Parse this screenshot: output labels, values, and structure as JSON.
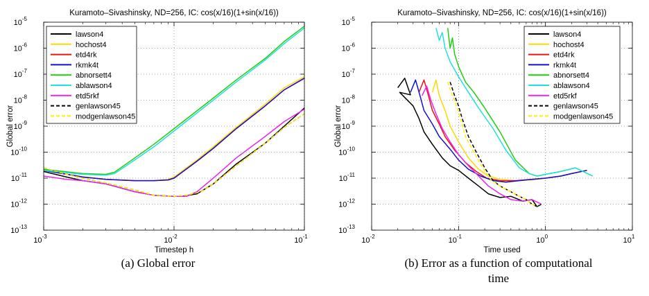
{
  "captions": [
    {
      "lines": [
        "(a) Global error"
      ]
    },
    {
      "lines": [
        "(b) Error as a function of computational",
        "time"
      ]
    }
  ],
  "colors": {
    "lawson4": "#000000",
    "hochost4": "#ffd700",
    "etd4rk": "#ee1111",
    "rkmk4t": "#1111cc",
    "abnorsett4": "#22cc11",
    "ablawson4": "#22e0e0",
    "etd5rkf": "#ee22ee",
    "genlawson45": "#000000",
    "modgenlawson45": "#ffee00"
  },
  "chart_data": [
    {
      "type": "line",
      "title": "Kuramoto–Sivashinsky, ND=256, IC: cos(x/16)(1+sin(x/16))",
      "xlabel": "Timestep h",
      "ylabel": "Global error",
      "xscale": "log",
      "yscale": "log",
      "xlim": [
        0.001,
        0.1
      ],
      "ylim": [
        1e-13,
        1e-05
      ],
      "xticks": [
        {
          "base": "10",
          "exp": "-3"
        },
        {
          "base": "10",
          "exp": "-2"
        },
        {
          "base": "10",
          "exp": "-1"
        }
      ],
      "yticks": [
        {
          "base": "10",
          "exp": "-13"
        },
        {
          "base": "10",
          "exp": "-12"
        },
        {
          "base": "10",
          "exp": "-11"
        },
        {
          "base": "10",
          "exp": "-10"
        },
        {
          "base": "10",
          "exp": "-9"
        },
        {
          "base": "10",
          "exp": "-8"
        },
        {
          "base": "10",
          "exp": "-7"
        },
        {
          "base": "10",
          "exp": "-6"
        },
        {
          "base": "10",
          "exp": "-5"
        }
      ],
      "grid": true,
      "legend_position": "top-left",
      "series": [
        {
          "name": "lawson4",
          "color": "#000000",
          "dash": "",
          "x": [
            0.001,
            0.0015,
            0.002,
            0.003,
            0.005,
            0.007,
            0.01,
            0.0115,
            0.015,
            0.02,
            0.03,
            0.05,
            0.07,
            0.1
          ],
          "y": [
            1.8e-11,
            1.1e-11,
            8e-12,
            6e-12,
            3e-12,
            2.2e-12,
            2e-12,
            2e-12,
            2.5e-12,
            6e-12,
            3.5e-11,
            2.2e-10,
            1e-09,
            5e-09
          ]
        },
        {
          "name": "hochost4",
          "color": "#ffd700",
          "dash": "",
          "x": [
            0.001,
            0.002,
            0.003,
            0.005,
            0.007,
            0.009,
            0.01,
            0.015,
            0.02,
            0.03,
            0.05,
            0.07,
            0.1
          ],
          "y": [
            2e-11,
            1.1e-11,
            9e-12,
            8e-12,
            8e-12,
            9e-12,
            1.1e-11,
            5e-11,
            1.6e-10,
            9e-10,
            7e-09,
            3e-08,
            8e-08
          ]
        },
        {
          "name": "etd4rk",
          "color": "#ee1111",
          "dash": "",
          "x": [
            0.001,
            0.002,
            0.003,
            0.005,
            0.007,
            0.009,
            0.01,
            0.015,
            0.02,
            0.03,
            0.05,
            0.07,
            0.1
          ],
          "y": [
            2e-11,
            1.1e-11,
            9e-12,
            8e-12,
            8e-12,
            8.5e-12,
            1e-11,
            4.5e-11,
            1.4e-10,
            8e-10,
            6e-09,
            2.5e-08,
            7e-08
          ]
        },
        {
          "name": "rkmk4t",
          "color": "#1111cc",
          "dash": "",
          "x": [
            0.001,
            0.002,
            0.003,
            0.005,
            0.007,
            0.009,
            0.01,
            0.015,
            0.02,
            0.03,
            0.05,
            0.07,
            0.1
          ],
          "y": [
            2e-11,
            1.1e-11,
            9e-12,
            8e-12,
            8e-12,
            8.5e-12,
            1e-11,
            4.5e-11,
            1.4e-10,
            8e-10,
            6e-09,
            2.5e-08,
            7e-08
          ]
        },
        {
          "name": "abnorsett4",
          "color": "#22cc11",
          "dash": "",
          "x": [
            0.001,
            0.002,
            0.003,
            0.0035,
            0.005,
            0.007,
            0.01,
            0.02,
            0.03,
            0.05,
            0.07,
            0.1
          ],
          "y": [
            2.2e-11,
            1.5e-11,
            1.4e-11,
            1.7e-11,
            6e-11,
            2e-10,
            8e-10,
            1.2e-08,
            6e-08,
            4e-07,
            1.8e-06,
            7e-06
          ]
        },
        {
          "name": "ablawson4",
          "color": "#22e0e0",
          "dash": "",
          "x": [
            0.001,
            0.002,
            0.003,
            0.0035,
            0.005,
            0.007,
            0.01,
            0.02,
            0.03,
            0.05,
            0.07,
            0.1
          ],
          "y": [
            2e-11,
            1.4e-11,
            1.3e-11,
            1.5e-11,
            5e-11,
            1.6e-10,
            6.5e-10,
            1e-08,
            5e-08,
            3.5e-07,
            1.5e-06,
            6e-06
          ]
        },
        {
          "name": "etd5rkf",
          "color": "#ee22ee",
          "dash": "",
          "x": [
            0.001,
            0.0015,
            0.002,
            0.003,
            0.005,
            0.007,
            0.01,
            0.0125,
            0.015,
            0.02,
            0.03,
            0.05,
            0.07,
            0.1
          ],
          "y": [
            1.2e-11,
            9e-12,
            8e-12,
            6e-12,
            3e-12,
            2.2e-12,
            2e-12,
            2e-12,
            3e-12,
            1e-11,
            6e-11,
            4e-10,
            1.5e-09,
            4.5e-09
          ]
        },
        {
          "name": "genlawson45",
          "color": "#000000",
          "dash": "5,3",
          "x": [
            0.001,
            0.0015,
            0.002,
            0.003,
            0.005,
            0.007,
            0.01,
            0.0125,
            0.016,
            0.02,
            0.03,
            0.05,
            0.07,
            0.1
          ],
          "y": [
            2.5e-11,
            1.4e-11,
            1e-11,
            6.5e-12,
            3.5e-12,
            2.2e-12,
            2e-12,
            2.2e-12,
            3e-12,
            6e-12,
            3e-11,
            2.2e-10,
            9e-10,
            3e-09
          ]
        },
        {
          "name": "modgenlawson45",
          "color": "#ffee00",
          "dash": "5,3",
          "x": [
            0.001,
            0.0015,
            0.002,
            0.003,
            0.005,
            0.007,
            0.01,
            0.0125,
            0.016,
            0.02,
            0.03,
            0.05,
            0.07,
            0.1
          ],
          "y": [
            2.5e-11,
            1.4e-11,
            1e-11,
            6.5e-12,
            3.5e-12,
            2.2e-12,
            2e-12,
            2.2e-12,
            3e-12,
            6e-12,
            3e-11,
            2.2e-10,
            9e-10,
            3e-09
          ]
        }
      ]
    },
    {
      "type": "line",
      "title": "Kuramoto–Sivashinsky, ND=256, IC: cos(x/16)(1+sin(x/16))",
      "xlabel": "Time used",
      "ylabel": "Global error",
      "xscale": "log",
      "yscale": "log",
      "xlim": [
        0.01,
        10
      ],
      "ylim": [
        1e-13,
        1e-05
      ],
      "xticks": [
        {
          "base": "10",
          "exp": "-2"
        },
        {
          "base": "10",
          "exp": "-1"
        },
        {
          "base": "10",
          "exp": "0"
        },
        {
          "base": "10",
          "exp": "1"
        }
      ],
      "yticks": [
        {
          "base": "10",
          "exp": "-13"
        },
        {
          "base": "10",
          "exp": "-12"
        },
        {
          "base": "10",
          "exp": "-11"
        },
        {
          "base": "10",
          "exp": "-10"
        },
        {
          "base": "10",
          "exp": "-9"
        },
        {
          "base": "10",
          "exp": "-8"
        },
        {
          "base": "10",
          "exp": "-7"
        },
        {
          "base": "10",
          "exp": "-6"
        },
        {
          "base": "10",
          "exp": "-5"
        }
      ],
      "grid": true,
      "legend_position": "top-right",
      "series": [
        {
          "name": "lawson4",
          "color": "#000000",
          "dash": "",
          "x": [
            0.02,
            0.024,
            0.028,
            0.021,
            0.03,
            0.035,
            0.04,
            0.05,
            0.065,
            0.08,
            0.1,
            0.13,
            0.17,
            0.22,
            0.3,
            0.4,
            0.55,
            0.7,
            0.8,
            0.9
          ],
          "y": [
            3e-08,
            7e-08,
            1.6e-08,
            2e-08,
            6e-09,
            2e-09,
            6e-10,
            2e-10,
            6e-11,
            3e-11,
            2e-11,
            1e-11,
            5e-12,
            2.5e-12,
            1.8e-12,
            2e-12,
            1.3e-12,
            1.5e-12,
            8e-13,
            1e-12
          ]
        },
        {
          "name": "hochost4",
          "color": "#ffd700",
          "dash": "",
          "x": [
            0.05,
            0.055,
            0.06,
            0.07,
            0.08,
            0.1,
            0.13,
            0.17,
            0.22,
            0.3,
            0.45,
            0.7,
            1,
            1.5,
            2,
            3
          ],
          "y": [
            2e-08,
            6e-08,
            1.5e-08,
            4e-09,
            1e-09,
            2.5e-10,
            6e-11,
            2.2e-11,
            1.2e-11,
            9e-12,
            8e-12,
            8.5e-12,
            1e-11,
            1.2e-11,
            1.5e-11,
            2e-11
          ]
        },
        {
          "name": "etd4rk",
          "color": "#ee1111",
          "dash": "",
          "x": [
            0.035,
            0.04,
            0.045,
            0.05,
            0.06,
            0.07,
            0.09,
            0.12,
            0.16,
            0.21,
            0.3,
            0.45,
            0.7,
            1,
            1.5,
            2,
            3
          ],
          "y": [
            2e-08,
            6e-08,
            1.5e-08,
            4e-09,
            1.2e-09,
            4e-10,
            1.2e-10,
            4e-11,
            1.8e-11,
            1e-11,
            8e-12,
            8e-12,
            9e-12,
            1e-11,
            1.2e-11,
            1.5e-11,
            2e-11
          ]
        },
        {
          "name": "rkmk4t",
          "color": "#1111cc",
          "dash": "",
          "x": [
            0.028,
            0.032,
            0.036,
            0.04,
            0.05,
            0.06,
            0.08,
            0.1,
            0.13,
            0.18,
            0.25,
            0.35,
            0.5,
            0.7,
            1,
            1.5,
            2,
            3
          ],
          "y": [
            2e-08,
            6e-08,
            1.5e-08,
            4e-09,
            1.2e-09,
            4e-10,
            1.3e-10,
            5e-11,
            2.2e-11,
            1.2e-11,
            8e-12,
            7e-12,
            8e-12,
            9e-12,
            1e-11,
            1.2e-11,
            1.5e-11,
            2e-11
          ]
        },
        {
          "name": "abnorsett4",
          "color": "#22cc11",
          "dash": "",
          "x": [
            0.075,
            0.08,
            0.085,
            0.09,
            0.1,
            0.12,
            0.15,
            0.2,
            0.3,
            0.45,
            0.65,
            0.8,
            1,
            1.5,
            2.2,
            3.5
          ],
          "y": [
            6e-06,
            1e-06,
            2.5e-06,
            6e-07,
            2e-07,
            5e-08,
            2e-08,
            5e-09,
            6e-10,
            5e-11,
            1.5e-11,
            1.2e-11,
            1.4e-11,
            1.8e-11,
            2.5e-11,
            1.2e-11
          ]
        },
        {
          "name": "ablawson4",
          "color": "#22e0e0",
          "dash": "",
          "x": [
            0.055,
            0.06,
            0.065,
            0.07,
            0.08,
            0.1,
            0.13,
            0.17,
            0.25,
            0.35,
            0.5,
            0.65,
            0.8,
            1,
            1.5,
            2.2,
            3.5
          ],
          "y": [
            6e-06,
            2e-06,
            4e-06,
            1e-06,
            3e-07,
            8e-08,
            2e-08,
            5e-09,
            8e-10,
            1.2e-10,
            2.5e-11,
            1.5e-11,
            1.2e-11,
            1.4e-11,
            1.8e-11,
            2.5e-11,
            1.2e-11
          ]
        },
        {
          "name": "etd5rkf",
          "color": "#ee22ee",
          "dash": "",
          "x": [
            0.038,
            0.043,
            0.048,
            0.055,
            0.065,
            0.08,
            0.1,
            0.13,
            0.17,
            0.22,
            0.3,
            0.4,
            0.55,
            0.7,
            0.9
          ],
          "y": [
            1.5e-08,
            3.5e-08,
            1e-08,
            3e-09,
            8e-10,
            2.5e-10,
            8e-11,
            3e-11,
            1.2e-11,
            5e-12,
            2.5e-12,
            1.5e-12,
            1.3e-12,
            1.5e-12,
            1e-12
          ]
        },
        {
          "name": "genlawson45",
          "color": "#000000",
          "dash": "5,3",
          "x": [
            0.08,
            0.09,
            0.1,
            0.11,
            0.13,
            0.16,
            0.2,
            0.25,
            0.3,
            0.4,
            0.5,
            0.6,
            0.7,
            0.8
          ],
          "y": [
            5e-08,
            1.5e-08,
            6e-09,
            2e-09,
            4e-10,
            1e-10,
            2.5e-11,
            8e-12,
            5e-12,
            3e-12,
            2e-12,
            1.5e-12,
            1e-12,
            8e-13
          ]
        },
        {
          "name": "modgenlawson45",
          "color": "#ffee00",
          "dash": "5,3",
          "x": [
            0.075,
            0.085,
            0.095,
            0.105,
            0.12,
            0.15,
            0.19,
            0.24,
            0.3,
            0.4,
            0.5,
            0.6,
            0.7,
            0.8
          ],
          "y": [
            5e-08,
            1.5e-08,
            6e-09,
            2e-09,
            4e-10,
            1e-10,
            2.5e-11,
            8e-12,
            5e-12,
            3e-12,
            2e-12,
            1.5e-12,
            1e-12,
            8e-13
          ]
        }
      ]
    }
  ]
}
